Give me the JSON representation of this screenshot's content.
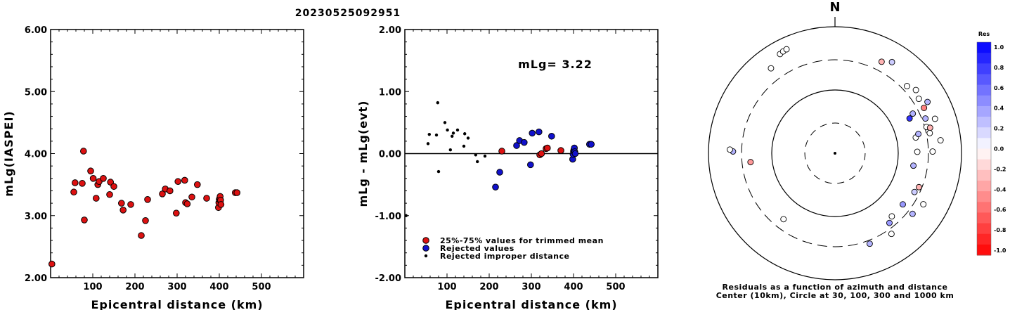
{
  "title": "20230525092951",
  "chart_data": [
    {
      "type": "scatter",
      "ylabel": "mLg(IASPEI)",
      "xlabel": "Epicentral distance (km)",
      "xlim": [
        0,
        600
      ],
      "ylim": [
        2.0,
        6.0
      ],
      "xticks": [
        "100",
        "200",
        "300",
        "400",
        "500"
      ],
      "yticks": [
        "2.00",
        "3.00",
        "4.00",
        "5.00",
        "6.00"
      ],
      "points": [
        [
          3,
          2.22
        ],
        [
          55,
          3.38
        ],
        [
          58,
          3.53
        ],
        [
          75,
          3.52
        ],
        [
          78,
          4.04
        ],
        [
          80,
          2.93
        ],
        [
          95,
          3.72
        ],
        [
          101,
          3.6
        ],
        [
          108,
          3.28
        ],
        [
          112,
          3.5
        ],
        [
          115,
          3.55
        ],
        [
          125,
          3.6
        ],
        [
          140,
          3.34
        ],
        [
          142,
          3.54
        ],
        [
          150,
          3.47
        ],
        [
          168,
          3.2
        ],
        [
          172,
          3.09
        ],
        [
          190,
          3.18
        ],
        [
          215,
          2.68
        ],
        [
          225,
          2.92
        ],
        [
          230,
          3.26
        ],
        [
          265,
          3.35
        ],
        [
          272,
          3.43
        ],
        [
          283,
          3.4
        ],
        [
          298,
          3.04
        ],
        [
          302,
          3.55
        ],
        [
          318,
          3.57
        ],
        [
          320,
          3.21
        ],
        [
          324,
          3.19
        ],
        [
          335,
          3.3
        ],
        [
          348,
          3.5
        ],
        [
          370,
          3.28
        ],
        [
          398,
          3.13
        ],
        [
          399,
          3.21
        ],
        [
          400,
          3.26
        ],
        [
          401,
          3.28
        ],
        [
          402,
          3.31
        ],
        [
          403,
          3.25
        ],
        [
          404,
          3.18
        ],
        [
          438,
          3.37
        ],
        [
          442,
          3.37
        ]
      ]
    },
    {
      "type": "scatter",
      "ylabel": "mLg - mLg(evt)",
      "xlabel": "Epicentral distance (km)",
      "xlim": [
        0,
        600
      ],
      "ylim": [
        -2.0,
        2.0
      ],
      "xticks": [
        "100",
        "200",
        "300",
        "400",
        "500"
      ],
      "yticks": [
        "-2.00",
        "-1.00",
        "0.00",
        "1.00",
        "2.00"
      ],
      "annotation": "mLg= 3.22",
      "legend": [
        "25%-75% values for trimmed mean",
        "Rejected values",
        "Rejected improper distance"
      ],
      "series": [
        {
          "name": "25%-75% values for trimmed mean",
          "color": "#dd1111",
          "points": [
            [
              230,
              0.04
            ],
            [
              320,
              -0.02
            ],
            [
              324,
              0.0
            ],
            [
              335,
              0.08
            ],
            [
              338,
              0.09
            ],
            [
              370,
              0.05
            ]
          ]
        },
        {
          "name": "Rejected values",
          "color": "#1111cc",
          "points": [
            [
              215,
              -0.54
            ],
            [
              225,
              -0.3
            ],
            [
              265,
              0.13
            ],
            [
              272,
              0.21
            ],
            [
              283,
              0.18
            ],
            [
              298,
              -0.18
            ],
            [
              302,
              0.33
            ],
            [
              318,
              0.35
            ],
            [
              348,
              0.28
            ],
            [
              398,
              -0.09
            ],
            [
              399,
              -0.01
            ],
            [
              400,
              0.04
            ],
            [
              401,
              0.06
            ],
            [
              402,
              0.09
            ],
            [
              403,
              0.03
            ],
            [
              404,
              0.0
            ],
            [
              438,
              0.15
            ],
            [
              442,
              0.15
            ]
          ]
        },
        {
          "name": "Rejected improper distance",
          "color": "#000000",
          "points": [
            [
              3,
              -1.0
            ],
            [
              55,
              0.16
            ],
            [
              58,
              0.31
            ],
            [
              75,
              0.3
            ],
            [
              78,
              0.82
            ],
            [
              80,
              -0.29
            ],
            [
              95,
              0.5
            ],
            [
              101,
              0.38
            ],
            [
              108,
              0.06
            ],
            [
              112,
              0.28
            ],
            [
              115,
              0.33
            ],
            [
              125,
              0.38
            ],
            [
              140,
              0.12
            ],
            [
              142,
              0.32
            ],
            [
              150,
              0.25
            ],
            [
              168,
              -0.02
            ],
            [
              172,
              -0.13
            ],
            [
              190,
              -0.04
            ]
          ]
        }
      ]
    },
    {
      "type": "polar-scatter",
      "north_label": "N",
      "caption_line1": "Residuals as a function of azimuth and distance",
      "caption_line2": "Center (10km), Circle at 30, 100, 300 and 1000 km",
      "rings_km": [
        30,
        100,
        300,
        1000
      ],
      "colorbar": {
        "title": "Res",
        "labels": [
          "1.0",
          "0.8",
          "0.6",
          "0.4",
          "0.2",
          "0.0",
          "-0.2",
          "-0.4",
          "-0.6",
          "-0.8",
          "-1.0"
        ]
      },
      "points": [
        {
          "az": 331,
          "dist": 620,
          "res": 0.0
        },
        {
          "az": 333,
          "dist": 640,
          "res": 0.0
        },
        {
          "az": 335,
          "dist": 650,
          "res": 0.0
        },
        {
          "az": 323,
          "dist": 480,
          "res": 0.0
        },
        {
          "az": 27,
          "dist": 420,
          "res": -0.3
        },
        {
          "az": 32,
          "dist": 500,
          "res": 0.2
        },
        {
          "az": 47,
          "dist": 360,
          "res": 0.0
        },
        {
          "az": 52,
          "dist": 420,
          "res": 0.0
        },
        {
          "az": 57,
          "dist": 380,
          "res": 0.0
        },
        {
          "az": 61,
          "dist": 470,
          "res": 0.3
        },
        {
          "az": 63,
          "dist": 380,
          "res": -0.5
        },
        {
          "az": 69,
          "dist": 340,
          "res": 0.3
        },
        {
          "az": 63,
          "dist": 240,
          "res": 0.3
        },
        {
          "az": 71,
          "dist": 470,
          "res": 0.0
        },
        {
          "az": 65,
          "dist": 200,
          "res": 0.8
        },
        {
          "az": 74,
          "dist": 320,
          "res": 0.0
        },
        {
          "az": 75,
          "dist": 360,
          "res": -0.3
        },
        {
          "az": 78,
          "dist": 340,
          "res": 0.0
        },
        {
          "az": 83,
          "dist": 480,
          "res": 0.0
        },
        {
          "az": 79,
          "dist": 200,
          "res": 0.0
        },
        {
          "az": 77,
          "dist": 225,
          "res": 0.3
        },
        {
          "az": 89,
          "dist": 350,
          "res": 0.0
        },
        {
          "az": 89,
          "dist": 200,
          "res": 0.0
        },
        {
          "az": 99,
          "dist": 180,
          "res": 0.3
        },
        {
          "az": 112,
          "dist": 270,
          "res": -0.3
        },
        {
          "az": 116,
          "dist": 250,
          "res": 0.2
        },
        {
          "az": 127,
          "dist": 220,
          "res": 0.4
        },
        {
          "az": 138,
          "dist": 220,
          "res": 0.0
        },
        {
          "az": 142,
          "dist": 250,
          "res": 0.4
        },
        {
          "az": 120,
          "dist": 410,
          "res": 0.0
        },
        {
          "az": 128,
          "dist": 360,
          "res": 0.3
        },
        {
          "az": 145,
          "dist": 360,
          "res": 0.0
        },
        {
          "az": 159,
          "dist": 340,
          "res": 0.3
        },
        {
          "az": 218,
          "dist": 210,
          "res": 0.0
        },
        {
          "az": 264,
          "dist": 220,
          "res": -0.4
        },
        {
          "az": 271,
          "dist": 410,
          "res": 0.3
        },
        {
          "az": 272,
          "dist": 460,
          "res": 0.0
        }
      ]
    }
  ]
}
